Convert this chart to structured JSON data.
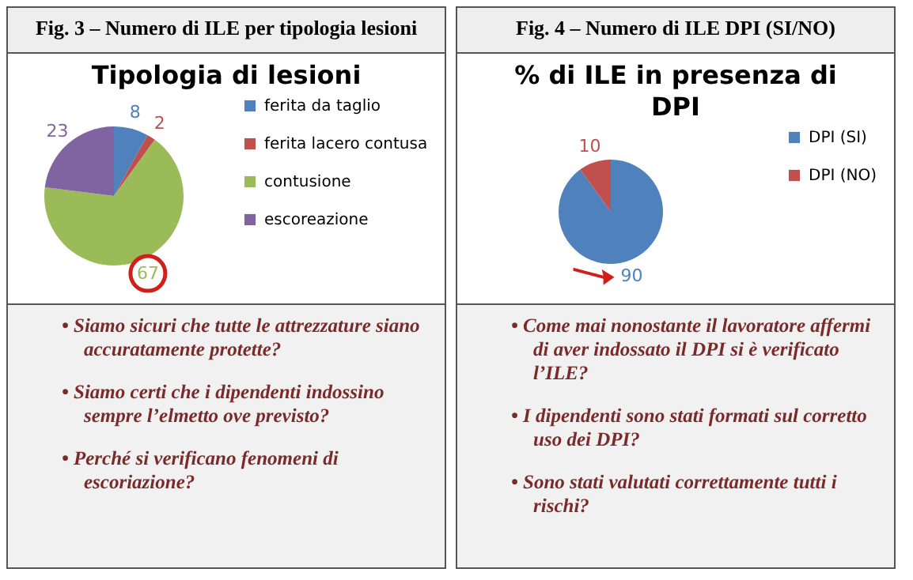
{
  "chart_data": [
    {
      "type": "pie",
      "title": "Fig. 3 – Numero di ILE per tipologia lesioni",
      "subtitle": "Tipologia di lesioni",
      "categories": [
        "ferita da taglio",
        "ferita lacero contusa",
        "contusione",
        "escoreazione"
      ],
      "values": [
        8,
        2,
        67,
        23
      ],
      "colors": [
        "#4f81bd",
        "#c0504d",
        "#9bbb59",
        "#8064a2"
      ],
      "data_labels": true,
      "legend": "right",
      "annotations": [
        "• Siamo sicuri che tutte le attrezzature siano accuratamente protette?",
        "• Siamo certi che i dipendenti indossino sempre l’elmetto ove previsto?",
        "• Perché si verificano fenomeni di escoriazione?"
      ]
    },
    {
      "type": "pie",
      "title": "Fig. 4 – Numero di ILE DPI (SI/NO)",
      "subtitle": "% di ILE in presenza di DPI",
      "categories": [
        "DPI (SI)",
        "DPI (NO)"
      ],
      "values": [
        90,
        10
      ],
      "colors": [
        "#4f81bd",
        "#c0504d"
      ],
      "data_labels": true,
      "legend": "right",
      "annotations": [
        "• Come mai nonostante il lavoratore affermi di aver indossato il DPI si è verificato l’ILE?",
        "• I dipendenti sono stati formati sul corretto uso dei DPI?",
        "• Sono stati valutati correttamente tutti i rischi?"
      ]
    }
  ]
}
